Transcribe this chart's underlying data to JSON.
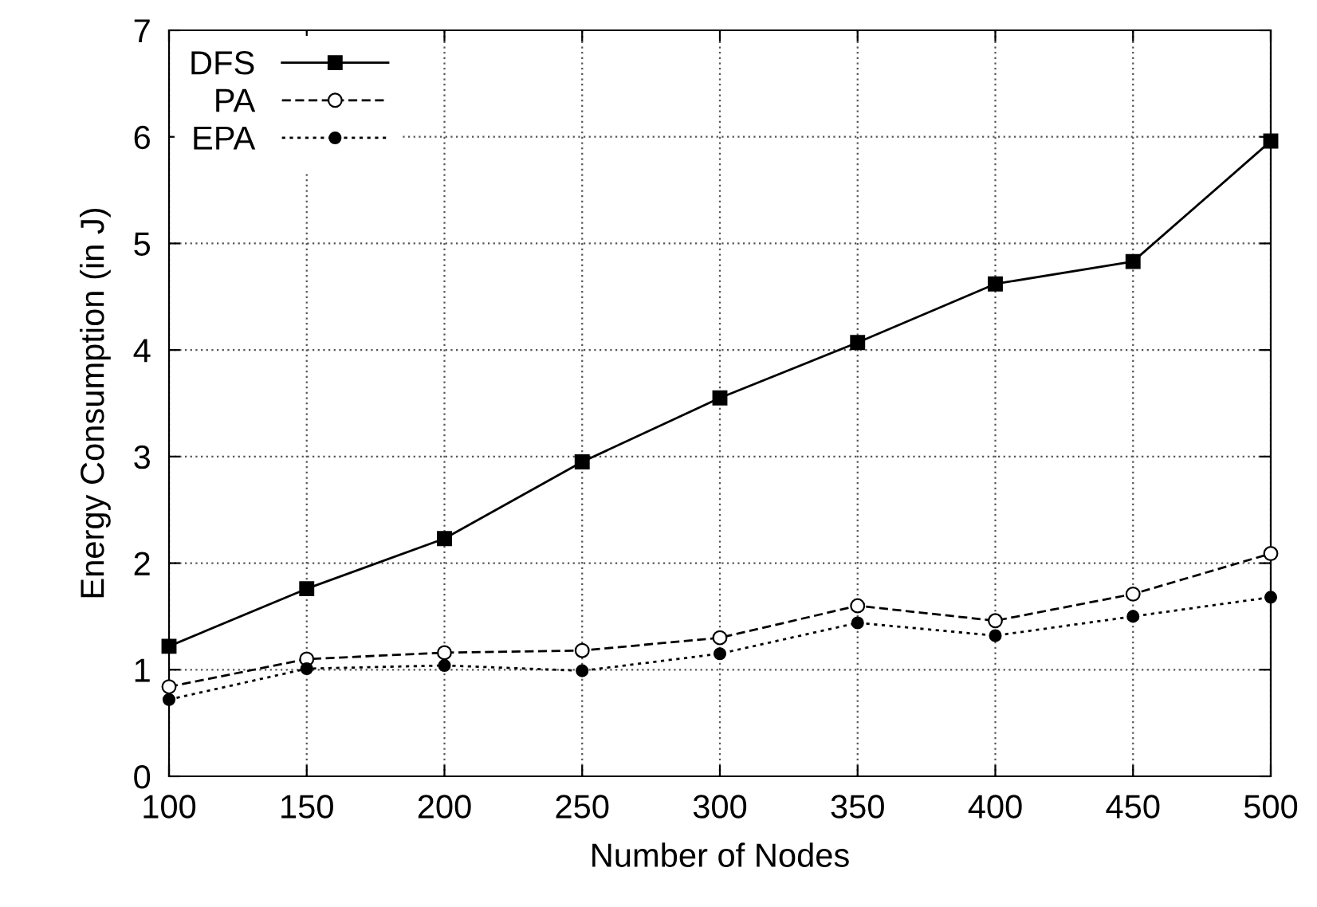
{
  "chart_data": {
    "type": "line",
    "xlabel": "Number of Nodes",
    "ylabel": "Energy Consumption (in J)",
    "x": [
      100,
      150,
      200,
      250,
      300,
      350,
      400,
      450,
      500
    ],
    "series": [
      {
        "name": "DFS",
        "color": "#000000",
        "marker": "square",
        "line_style": "solid",
        "values": [
          1.22,
          1.76,
          2.23,
          2.95,
          3.55,
          4.07,
          4.62,
          4.83,
          5.96
        ]
      },
      {
        "name": "PA",
        "color": "#000000",
        "marker": "circle",
        "line_style": "dashed",
        "values": [
          0.84,
          1.1,
          1.16,
          1.18,
          1.3,
          1.6,
          1.46,
          1.71,
          2.09
        ]
      },
      {
        "name": "EPA",
        "color": "#000000",
        "marker": "dot",
        "line_style": "dotted",
        "values": [
          0.72,
          1.01,
          1.04,
          0.99,
          1.15,
          1.44,
          1.32,
          1.5,
          1.68
        ]
      }
    ],
    "xlim": [
      100,
      500
    ],
    "xticks": [
      100,
      150,
      200,
      250,
      300,
      350,
      400,
      450,
      500
    ],
    "ylim": [
      0,
      7
    ],
    "yticks": [
      0,
      1,
      2,
      3,
      4,
      5,
      6,
      7
    ],
    "grid": true,
    "legend": "top left"
  }
}
